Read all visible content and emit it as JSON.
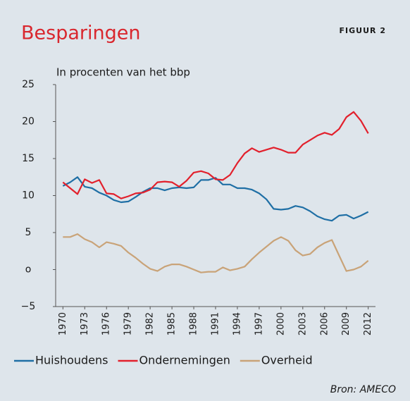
{
  "chart_data": {
    "type": "line",
    "title": "Besparingen",
    "label": "FIGUUR 2",
    "subtitle": "In procenten van het bbp",
    "source": "Bron: AMECO",
    "x": [
      1970,
      1971,
      1972,
      1973,
      1974,
      1975,
      1976,
      1977,
      1978,
      1979,
      1980,
      1981,
      1982,
      1983,
      1984,
      1985,
      1986,
      1987,
      1988,
      1989,
      1990,
      1991,
      1992,
      1993,
      1994,
      1995,
      1996,
      1997,
      1998,
      1999,
      2000,
      2001,
      2002,
      2003,
      2004,
      2005,
      2006,
      2007,
      2008,
      2009,
      2010,
      2011,
      2012
    ],
    "series": [
      {
        "name": "Huishoudens",
        "color": "#1f6fa5",
        "values": [
          11.3,
          11.8,
          12.5,
          11.2,
          11.0,
          10.4,
          10.0,
          9.4,
          9.1,
          9.2,
          9.8,
          10.5,
          11.0,
          11.0,
          10.7,
          11.0,
          11.1,
          11.0,
          11.1,
          12.1,
          12.1,
          12.4,
          11.5,
          11.5,
          11.0,
          11.0,
          10.8,
          10.3,
          9.5,
          8.2,
          8.1,
          8.2,
          8.6,
          8.4,
          7.9,
          7.2,
          6.8,
          6.6,
          7.3,
          7.4,
          6.9,
          7.3,
          7.8
        ]
      },
      {
        "name": "Ondernemingen",
        "color": "#e2202c",
        "values": [
          11.8,
          11.0,
          10.2,
          12.2,
          11.7,
          12.1,
          10.3,
          10.2,
          9.6,
          9.9,
          10.3,
          10.4,
          10.8,
          11.8,
          11.9,
          11.8,
          11.2,
          12.0,
          13.1,
          13.3,
          13.0,
          12.2,
          12.1,
          12.8,
          14.4,
          15.7,
          16.4,
          15.9,
          16.2,
          16.5,
          16.2,
          15.8,
          15.8,
          16.9,
          17.5,
          18.1,
          18.5,
          18.2,
          19.0,
          20.6,
          21.3,
          20.1,
          18.4
        ]
      },
      {
        "name": "Overheid",
        "color": "#c9a378",
        "values": [
          4.4,
          4.4,
          4.8,
          4.1,
          3.7,
          3.0,
          3.7,
          3.5,
          3.2,
          2.3,
          1.6,
          0.8,
          0.1,
          -0.2,
          0.4,
          0.7,
          0.7,
          0.4,
          0.0,
          -0.4,
          -0.3,
          -0.3,
          0.3,
          -0.1,
          0.1,
          0.4,
          1.4,
          2.3,
          3.1,
          3.9,
          4.4,
          3.9,
          2.6,
          1.9,
          2.1,
          3.0,
          3.6,
          4.0,
          1.9,
          -0.2,
          0.0,
          0.4,
          1.2
        ]
      }
    ],
    "xlim": [
      1969,
      2013
    ],
    "xticks": [
      1970,
      1973,
      1976,
      1979,
      1982,
      1985,
      1988,
      1991,
      1994,
      1997,
      2000,
      2003,
      2006,
      2009,
      2012
    ],
    "ylim": [
      -5,
      25
    ],
    "yticks": [
      25,
      20,
      15,
      10,
      5,
      {
        "value": 0,
        "label": "o"
      },
      {
        "value": -5,
        "label": "−5"
      }
    ],
    "grid": false,
    "legend": "bottom"
  }
}
